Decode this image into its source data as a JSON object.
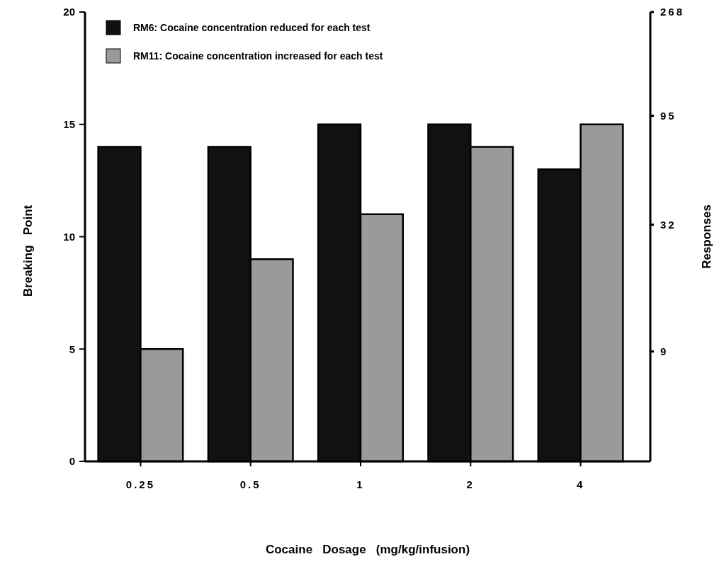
{
  "chart_data": {
    "type": "bar",
    "xlabel": "Cocaine   Dosage   (mg/kg/infusion)",
    "ylabel": "Breaking   Point",
    "y2label": "Responses",
    "categories": [
      "0.25",
      "0.5",
      "1",
      "2",
      "4"
    ],
    "series": [
      {
        "name": "RM6: Cocaine concentration reduced for each test",
        "color": "#111111",
        "values": [
          14,
          14,
          15,
          15,
          13
        ]
      },
      {
        "name": "RM11: Cocaine concentration increased for each test",
        "color": "#9a9a9a",
        "values": [
          5,
          9,
          11,
          14,
          15
        ]
      }
    ],
    "ylim": [
      0,
      20
    ],
    "yticks": [
      0,
      5,
      10,
      15,
      20
    ],
    "y2lim": [
      3,
      268
    ],
    "y2ticks": [
      9,
      32,
      95,
      268
    ],
    "log": "y2",
    "grid": false,
    "legend": "top left"
  }
}
